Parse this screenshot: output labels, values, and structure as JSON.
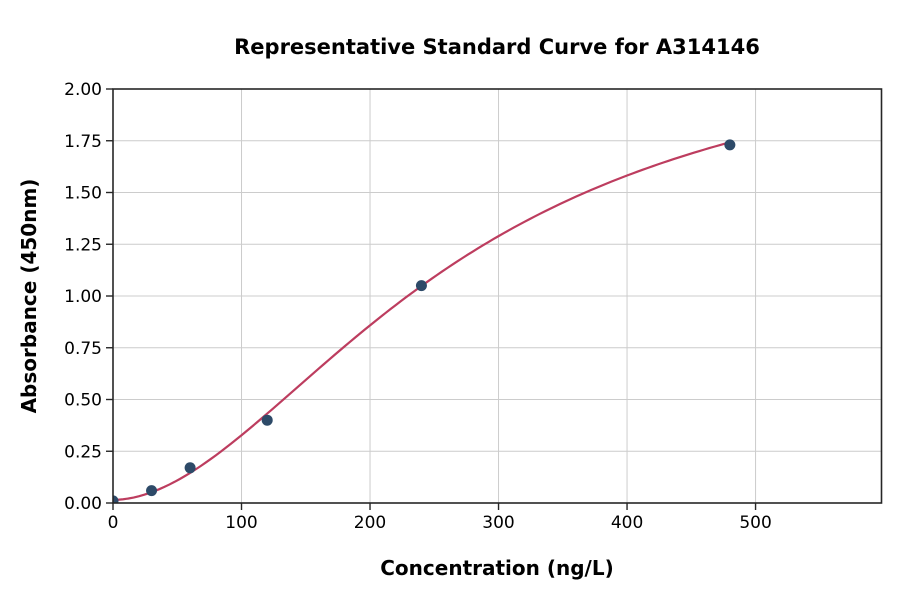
{
  "page": {
    "background": "#ffffff"
  },
  "chart_data": {
    "type": "scatter",
    "title": "Representative Standard Curve for A314146",
    "xlabel": "Concentration (ng/L)",
    "ylabel": "Absorbance (450nm)",
    "xlim": [
      0,
      598
    ],
    "ylim": [
      0,
      2
    ],
    "grid": true,
    "legend": "none",
    "x_ticks": [
      {
        "value": 0,
        "label": "0"
      },
      {
        "value": 100,
        "label": "100"
      },
      {
        "value": 200,
        "label": "200"
      },
      {
        "value": 300,
        "label": "300"
      },
      {
        "value": 400,
        "label": "400"
      },
      {
        "value": 500,
        "label": "500"
      }
    ],
    "y_ticks": [
      {
        "value": 0.0,
        "label": "0.00"
      },
      {
        "value": 0.25,
        "label": "0.25"
      },
      {
        "value": 0.5,
        "label": "0.50"
      },
      {
        "value": 0.75,
        "label": "0.75"
      },
      {
        "value": 1.0,
        "label": "1.00"
      },
      {
        "value": 1.25,
        "label": "1.25"
      },
      {
        "value": 1.5,
        "label": "1.50"
      },
      {
        "value": 1.75,
        "label": "1.75"
      },
      {
        "value": 2.0,
        "label": "2.00"
      }
    ],
    "points": {
      "name": "standard-points",
      "x": [
        0,
        30,
        60,
        120,
        240,
        480
      ],
      "y": [
        0.01,
        0.06,
        0.17,
        0.4,
        1.05,
        1.73
      ]
    },
    "fit_curve": {
      "name": "4pl-fit",
      "model": "4PL",
      "params": {
        "a": 0.015,
        "b": 1.88,
        "c": 268,
        "d": 2.32
      },
      "x_start": 0,
      "x_end": 480
    },
    "colors": {
      "grid": "#cccccc",
      "axis": "#262626",
      "text": "#000000",
      "point": "#2d4a68",
      "curve": "#bd3d5f"
    }
  }
}
